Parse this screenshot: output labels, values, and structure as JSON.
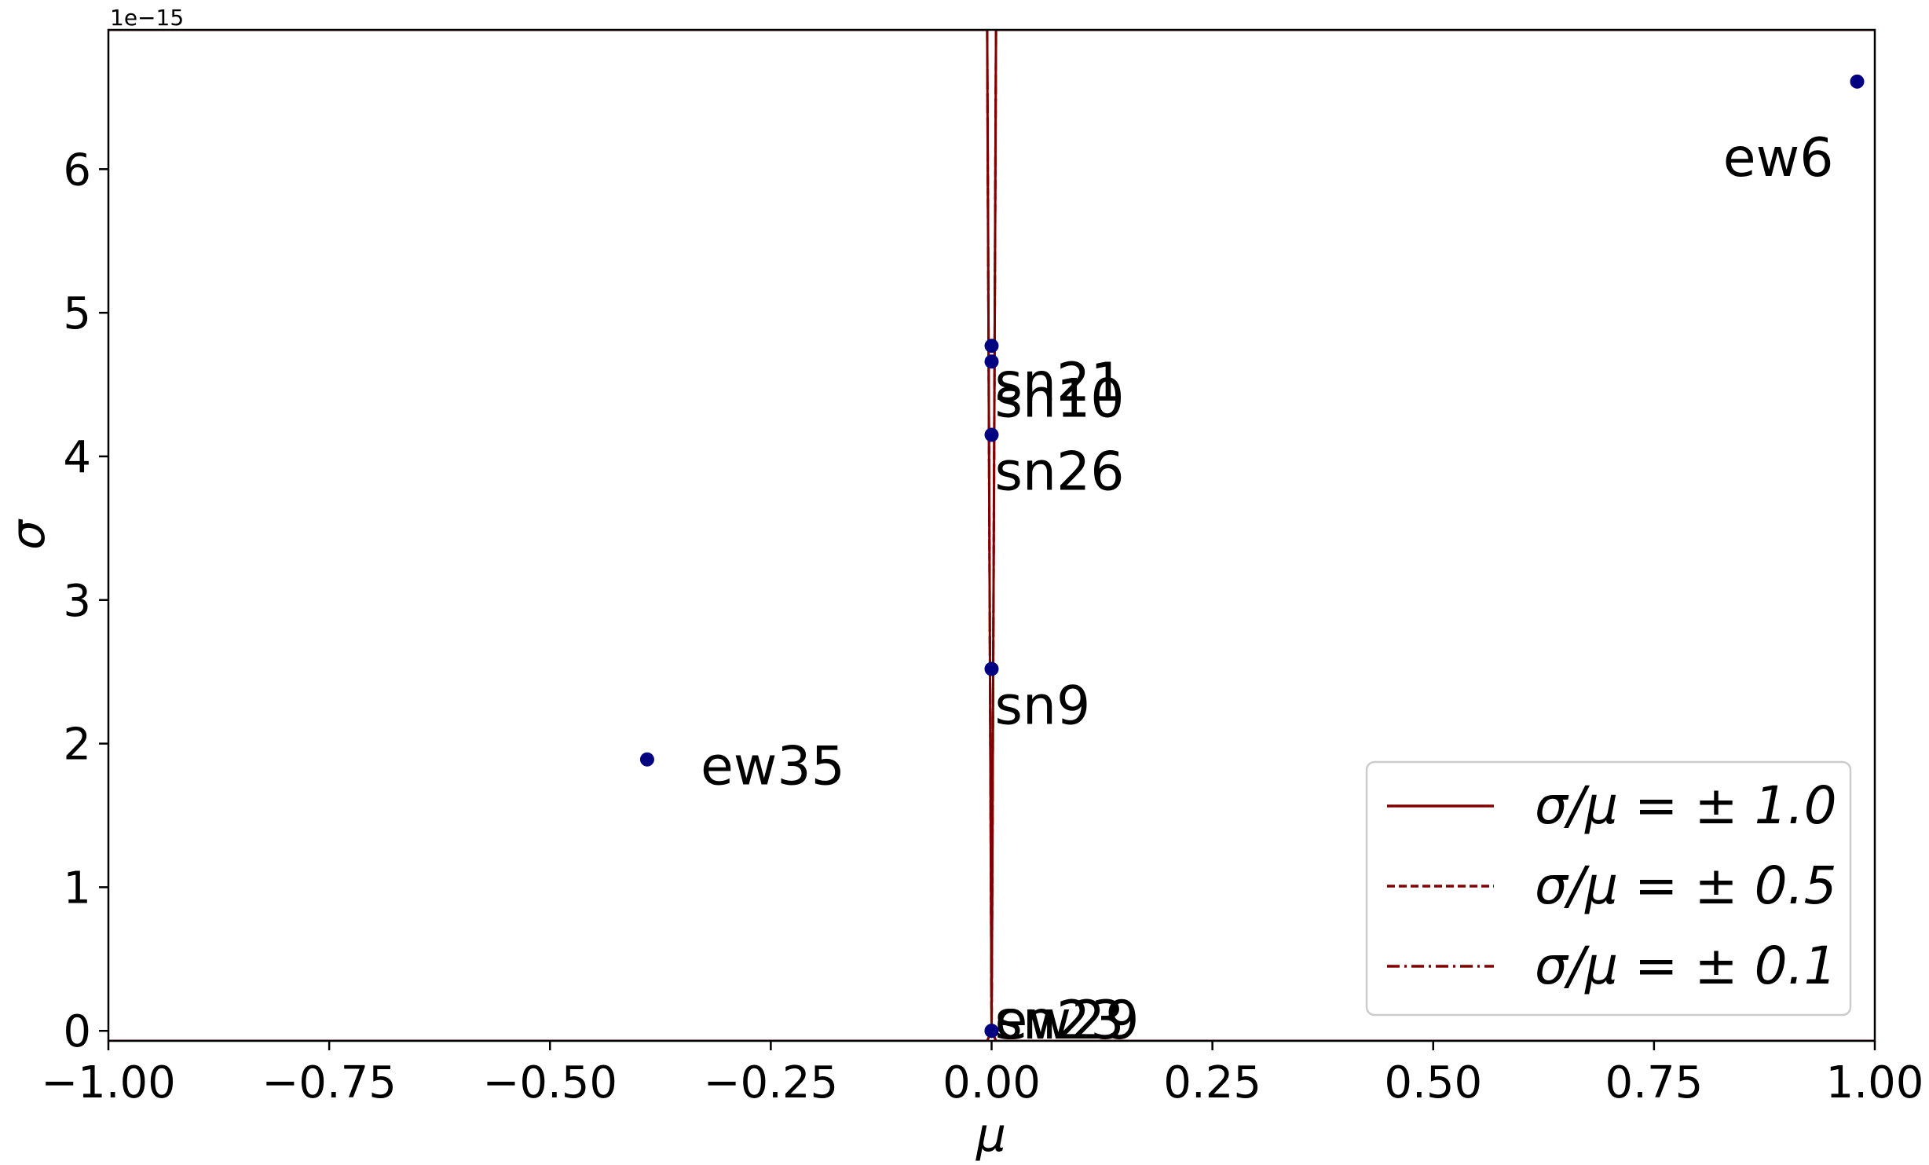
{
  "chart_data": {
    "type": "scatter",
    "title": "",
    "xlabel": "μ",
    "ylabel": "σ",
    "y_offset_label": "1e−15",
    "xlim": [
      -1.0,
      1.0
    ],
    "ylim": [
      -0.07,
      6.97
    ],
    "y_scale_factor": 1e-15,
    "x_ticks": [
      {
        "value": -1.0,
        "label": "−1.00"
      },
      {
        "value": -0.75,
        "label": "−0.75"
      },
      {
        "value": -0.5,
        "label": "−0.50"
      },
      {
        "value": -0.25,
        "label": "−0.25"
      },
      {
        "value": 0.0,
        "label": "0.00"
      },
      {
        "value": 0.25,
        "label": "0.25"
      },
      {
        "value": 0.5,
        "label": "0.50"
      },
      {
        "value": 0.75,
        "label": "0.75"
      },
      {
        "value": 1.0,
        "label": "1.00"
      }
    ],
    "y_ticks": [
      {
        "value": 0,
        "label": "0"
      },
      {
        "value": 1,
        "label": "1"
      },
      {
        "value": 2,
        "label": "2"
      },
      {
        "value": 3,
        "label": "3"
      },
      {
        "value": 4,
        "label": "4"
      },
      {
        "value": 5,
        "label": "5"
      },
      {
        "value": 6,
        "label": "6"
      }
    ],
    "grid": false,
    "legend_position": "bottom-right",
    "point_color": "#000080",
    "line_color": "#800000",
    "points": [
      {
        "label": "ew6",
        "x": 0.98,
        "y": 6.61,
        "label_side": "below-left"
      },
      {
        "label": "sn21",
        "x": 0.0,
        "y": 4.77,
        "label_side": "below-right"
      },
      {
        "label": "sn10",
        "x": 0.0,
        "y": 4.66,
        "label_side": "below-right"
      },
      {
        "label": "sn26",
        "x": 0.0,
        "y": 4.15,
        "label_side": "below-right"
      },
      {
        "label": "sn9",
        "x": 0.0,
        "y": 2.52,
        "label_side": "below-right"
      },
      {
        "label": "ew35",
        "x": -0.39,
        "y": 1.89,
        "label_side": "below-right"
      },
      {
        "label": "sn23",
        "x": 0.0,
        "y": 0.0,
        "label_side": "right"
      },
      {
        "label": "ew29",
        "x": 0.0,
        "y": 0.0,
        "label_side": "right"
      }
    ],
    "series": [
      {
        "name": "σ/μ = ± 1.0",
        "ratio": 1.0,
        "style": "solid"
      },
      {
        "name": "σ/μ = ± 0.5",
        "ratio": 0.5,
        "style": "dashed"
      },
      {
        "name": "σ/μ = ± 0.1",
        "ratio": 0.1,
        "style": "dashdot"
      }
    ]
  }
}
